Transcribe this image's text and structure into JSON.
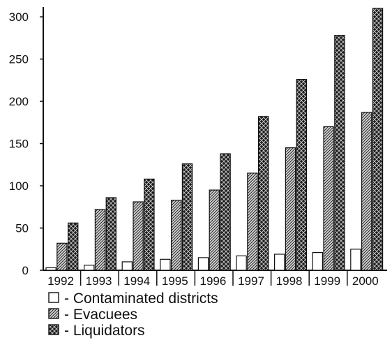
{
  "chart_data": {
    "type": "bar",
    "title": "",
    "xlabel": "",
    "ylabel": "",
    "categories": [
      "1992",
      "1993",
      "1994",
      "1995",
      "1996",
      "1997",
      "1998",
      "1999",
      "2000"
    ],
    "series": [
      {
        "name": "Contaminated districts",
        "values": [
          3,
          6,
          10,
          13,
          15,
          17,
          19,
          21,
          25
        ]
      },
      {
        "name": "Evacuees",
        "values": [
          32,
          72,
          81,
          83,
          95,
          115,
          145,
          170,
          187
        ]
      },
      {
        "name": "Liquidators",
        "values": [
          56,
          86,
          108,
          126,
          138,
          182,
          226,
          278,
          310
        ]
      }
    ],
    "ylim": [
      0,
      310
    ],
    "yticks": [
      0,
      50,
      100,
      150,
      200,
      250,
      300
    ],
    "grid": false,
    "legend_position": "bottom-left",
    "legend_labels": [
      "- Contaminated districts",
      "- Evacuees",
      "- Liquidators"
    ],
    "colors": {
      "axis": "#111111",
      "bar_outline": "#111111",
      "contaminated_fill": "#ffffff",
      "evacuees_fill": "#9a9a9a",
      "liquidators_fill": "#2a2a2a"
    }
  }
}
